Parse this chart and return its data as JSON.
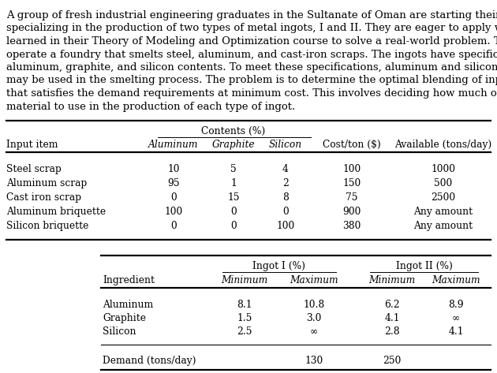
{
  "paragraph": "A group of fresh industrial engineering graduates in the Sultanate of Oman are starting their own business, specializing in the production of two types of metal ingots, I and II. They are eager to apply what they learned in their Theory of Modeling and Optimization course to solve a real-world problem. The graduates operate a foundry that smelts steel, aluminum, and cast-iron scraps. The ingots have specific limits on the aluminum, graphite, and silicon contents. To meet these specifications, aluminum and silicon briquettes may be used in the smelting process. The problem is to determine the optimal blending of input materials that satisfies the demand requirements at minimum cost. This involves deciding how much of each input material to use in the production of each type of ingot.",
  "table1_span_header": "Contents (%)",
  "table1_col_headers": [
    "Input item",
    "Aluminum",
    "Graphite",
    "Silicon",
    "Cost/ton ($)",
    "Available (tons/day)"
  ],
  "table1_rows": [
    [
      "Steel scrap",
      "10",
      "5",
      "4",
      "100",
      "1000"
    ],
    [
      "Aluminum scrap",
      "95",
      "1",
      "2",
      "150",
      "500"
    ],
    [
      "Cast iron scrap",
      "0",
      "15",
      "8",
      "75",
      "2500"
    ],
    [
      "Aluminum briquette",
      "100",
      "0",
      "0",
      "900",
      "Any amount"
    ],
    [
      "Silicon briquette",
      "0",
      "0",
      "100",
      "380",
      "Any amount"
    ]
  ],
  "table2_span1_header": "Ingot I (%)",
  "table2_span2_header": "Ingot II (%)",
  "table2_col_headers": [
    "Ingredient",
    "Minimum",
    "Maximum",
    "Minimum",
    "Maximum"
  ],
  "table2_rows": [
    [
      "Aluminum",
      "8.1",
      "10.8",
      "6.2",
      "8.9"
    ],
    [
      "Graphite",
      "1.5",
      "3.0",
      "4.1",
      "∞"
    ],
    [
      "Silicon",
      "2.5",
      "∞",
      "2.8",
      "4.1"
    ]
  ],
  "table2_demand": [
    "Demand (tons/day)",
    "",
    "130",
    "250",
    ""
  ],
  "bg_color": "#ffffff",
  "text_color": "#000000",
  "para_fontsize": 9.5,
  "table_fontsize": 8.8
}
